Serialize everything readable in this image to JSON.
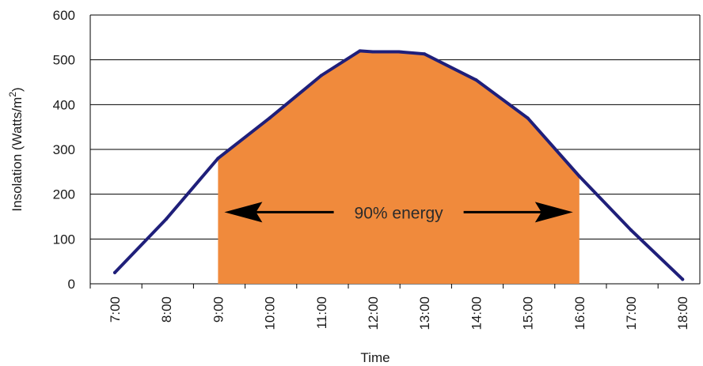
{
  "chart_data": {
    "type": "line",
    "xlabel": "Time",
    "ylabel": "Insolation (Watts/m²)",
    "ylabel_parts": {
      "prefix": "Insolation (Watts/m",
      "superscript": "2",
      "suffix": ")"
    },
    "ylim": [
      0,
      600
    ],
    "yticks": [
      0,
      100,
      200,
      300,
      400,
      500,
      600
    ],
    "categories": [
      "7:00",
      "8:00",
      "9:00",
      "10:00",
      "11:00",
      "12:00",
      "13:00",
      "14:00",
      "15:00",
      "16:00",
      "17:00",
      "18:00"
    ],
    "x": [
      7,
      8,
      9,
      10,
      11,
      11.75,
      12,
      12.5,
      13,
      14,
      15,
      16,
      17,
      18
    ],
    "series": [
      {
        "values": [
          25,
          145,
          280,
          370,
          465,
          520,
          518,
          518,
          513,
          455,
          370,
          240,
          120,
          10
        ]
      }
    ],
    "shaded_region": {
      "x_from": 9.0,
      "x_to": 16.0,
      "label": "90% energy",
      "label_y": 160
    },
    "grid": "horizontal",
    "colors": {
      "line": "#1f1f7a",
      "fill": "#f08a3c",
      "grid": "#000000",
      "arrow": "#000000"
    }
  }
}
